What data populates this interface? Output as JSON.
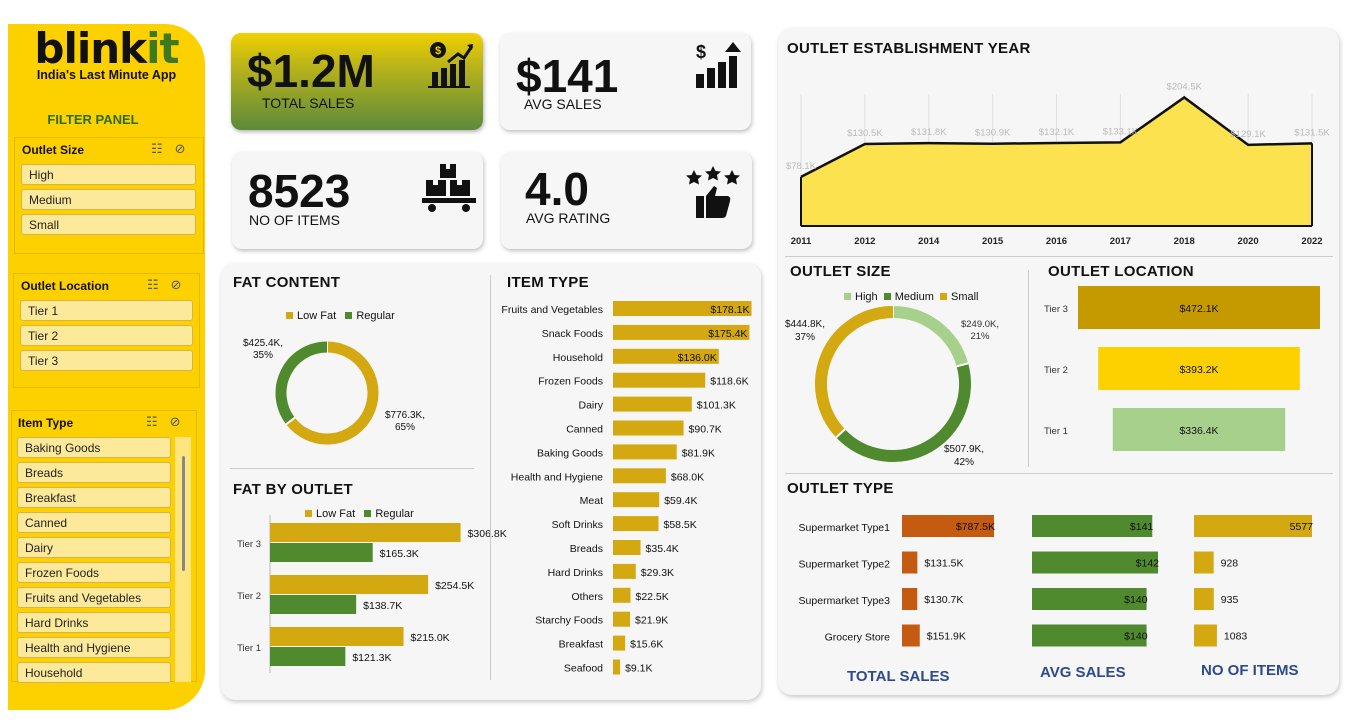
{
  "brand": {
    "logo_part1": "blink",
    "logo_part2": "it",
    "tagline": "India's Last Minute App"
  },
  "filter_panel": {
    "title": "FILTER PANEL",
    "outlet_size": {
      "label": "Outlet Size",
      "items": [
        "High",
        "Medium",
        "Small"
      ]
    },
    "outlet_location": {
      "label": "Outlet Location",
      "items": [
        "Tier 1",
        "Tier 2",
        "Tier 3"
      ]
    },
    "item_type": {
      "label": "Item Type",
      "items": [
        "Baking Goods",
        "Breads",
        "Breakfast",
        "Canned",
        "Dairy",
        "Frozen Foods",
        "Fruits and Vegetables",
        "Hard Drinks",
        "Health and Hygiene",
        "Household"
      ]
    }
  },
  "kpis": {
    "total_sales": {
      "value": "$1.2M",
      "label": "TOTAL SALES"
    },
    "avg_sales": {
      "value": "$141",
      "label": "AVG SALES"
    },
    "no_of_items": {
      "value": "8523",
      "label": "NO OF ITEMS"
    },
    "avg_rating": {
      "value": "4.0",
      "label": "AVG RATING"
    }
  },
  "colors": {
    "yellow": "#fdd000",
    "dark_yellow": "#c49a00",
    "gold": "#d4a811",
    "green": "#4f8a2e",
    "light_green": "#a8d08d",
    "orange": "#c55a11",
    "bright_yellow": "#fdd000"
  },
  "chart_data": [
    {
      "type": "area",
      "title": "OUTLET ESTABLISHMENT YEAR",
      "categories": [
        "2011",
        "2012",
        "2014",
        "2015",
        "2016",
        "2017",
        "2018",
        "2020",
        "2022"
      ],
      "values": [
        78.1,
        130.5,
        131.8,
        130.9,
        132.1,
        133.1,
        204.5,
        129.1,
        131.5
      ],
      "data_labels": [
        "$78.1K",
        "$130.5K",
        "$131.8K",
        "$130.9K",
        "$132.1K",
        "$133.1K",
        "$204.5K",
        "$129.1K",
        "$131.5K"
      ],
      "ylim": [
        0,
        210
      ]
    },
    {
      "type": "pie",
      "title": "FAT CONTENT",
      "legend": [
        "Low Fat",
        "Regular"
      ],
      "values": [
        776.3,
        425.4
      ],
      "data_labels": [
        "$776.3K, 65%",
        "$425.4K, 35%"
      ]
    },
    {
      "type": "bar",
      "title": "FAT BY OUTLET",
      "categories": [
        "Tier 3",
        "Tier 2",
        "Tier 1"
      ],
      "series": [
        {
          "name": "Low Fat",
          "values": [
            306.8,
            254.5,
            215.0
          ],
          "data_labels": [
            "$306.8K",
            "$254.5K",
            "$215.0K"
          ]
        },
        {
          "name": "Regular",
          "values": [
            165.3,
            138.7,
            121.3
          ],
          "data_labels": [
            "$165.3K",
            "$138.7K",
            "$121.3K"
          ]
        }
      ],
      "xlim": [
        0,
        330
      ]
    },
    {
      "type": "bar",
      "title": "ITEM TYPE",
      "categories": [
        "Fruits and Vegetables",
        "Snack Foods",
        "Household",
        "Frozen Foods",
        "Dairy",
        "Canned",
        "Baking Goods",
        "Health and Hygiene",
        "Meat",
        "Soft Drinks",
        "Breads",
        "Hard Drinks",
        "Others",
        "Starchy Foods",
        "Breakfast",
        "Seafood"
      ],
      "values": [
        178.1,
        175.4,
        136.0,
        118.6,
        101.3,
        90.7,
        81.9,
        68.0,
        59.4,
        58.5,
        35.4,
        29.3,
        22.5,
        21.9,
        15.6,
        9.1
      ],
      "data_labels": [
        "$178.1K",
        "$175.4K",
        "$136.0K",
        "$118.6K",
        "$101.3K",
        "$90.7K",
        "$81.9K",
        "$68.0K",
        "$59.4K",
        "$58.5K",
        "$35.4K",
        "$29.3K",
        "$22.5K",
        "$21.9K",
        "$15.6K",
        "$9.1K"
      ],
      "xlim": [
        0,
        180
      ]
    },
    {
      "type": "pie",
      "title": "OUTLET SIZE",
      "legend": [
        "High",
        "Medium",
        "Small"
      ],
      "values": [
        249.0,
        507.9,
        444.8
      ],
      "data_labels": [
        "$249.0K, 21%",
        "$507.9K, 42%",
        "$444.8K, 37%"
      ]
    },
    {
      "type": "bar",
      "title": "OUTLET LOCATION",
      "categories": [
        "Tier 3",
        "Tier 2",
        "Tier 1"
      ],
      "values": [
        472.1,
        393.2,
        336.4
      ],
      "data_labels": [
        "$472.1K",
        "$393.2K",
        "$336.4K"
      ]
    },
    {
      "type": "table",
      "title": "OUTLET TYPE",
      "categories": [
        "Supermarket Type1",
        "Supermarket Type2",
        "Supermarket Type3",
        "Grocery Store"
      ],
      "series": [
        {
          "name": "TOTAL SALES",
          "values": [
            787.5,
            131.5,
            130.7,
            151.9
          ],
          "data_labels": [
            "$787.5K",
            "$131.5K",
            "$130.7K",
            "$151.9K"
          ]
        },
        {
          "name": "AVG SALES",
          "values": [
            141,
            142,
            140,
            140
          ],
          "data_labels": [
            "$141",
            "$142",
            "$140",
            "$140"
          ]
        },
        {
          "name": "NO OF ITEMS",
          "values": [
            5577,
            928,
            935,
            1083
          ],
          "data_labels": [
            "5577",
            "928",
            "935",
            "1083"
          ]
        }
      ]
    }
  ]
}
